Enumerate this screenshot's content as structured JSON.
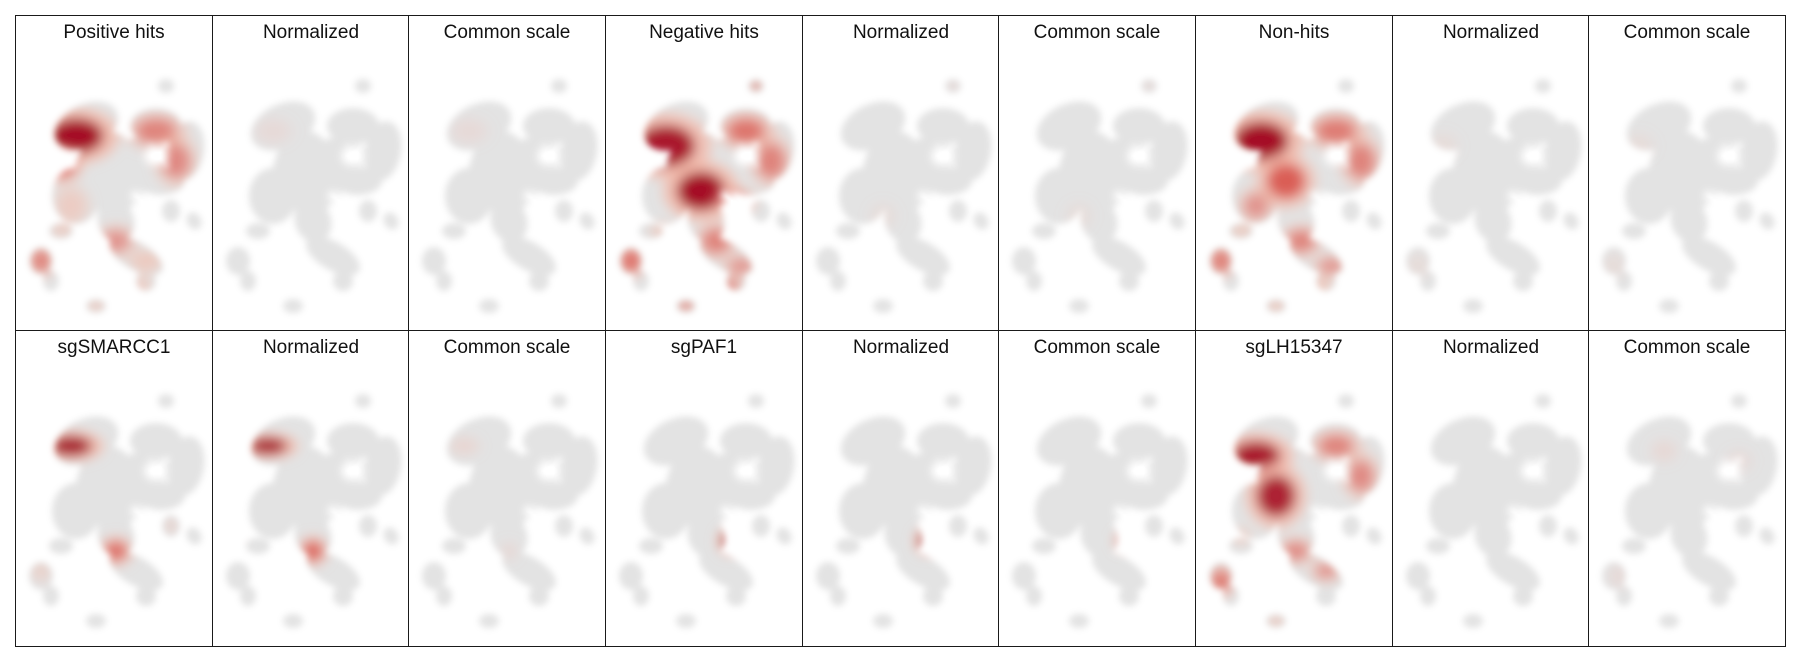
{
  "chart_data": {
    "type": "heatmap",
    "layout": "2 rows x 9 columns of UMAP density panels",
    "colormap": [
      "#ffffff",
      "#f4b6a6",
      "#d6453d",
      "#a50f26"
    ],
    "background_color": "#e3e3e3",
    "panels": [
      {
        "title": "Positive hits"
      },
      {
        "title": "Normalized"
      },
      {
        "title": "Common scale"
      },
      {
        "title": "Negative hits"
      },
      {
        "title": "Normalized"
      },
      {
        "title": "Common scale"
      },
      {
        "title": "Non-hits"
      },
      {
        "title": "Normalized"
      },
      {
        "title": "Common scale"
      },
      {
        "title": "sgSMARCC1"
      },
      {
        "title": "Normalized"
      },
      {
        "title": "Common scale"
      },
      {
        "title": "sgPAF1"
      },
      {
        "title": "Normalized"
      },
      {
        "title": "Common scale"
      },
      {
        "title": "sgLH15347"
      },
      {
        "title": "Normalized"
      },
      {
        "title": "Common scale"
      }
    ]
  }
}
